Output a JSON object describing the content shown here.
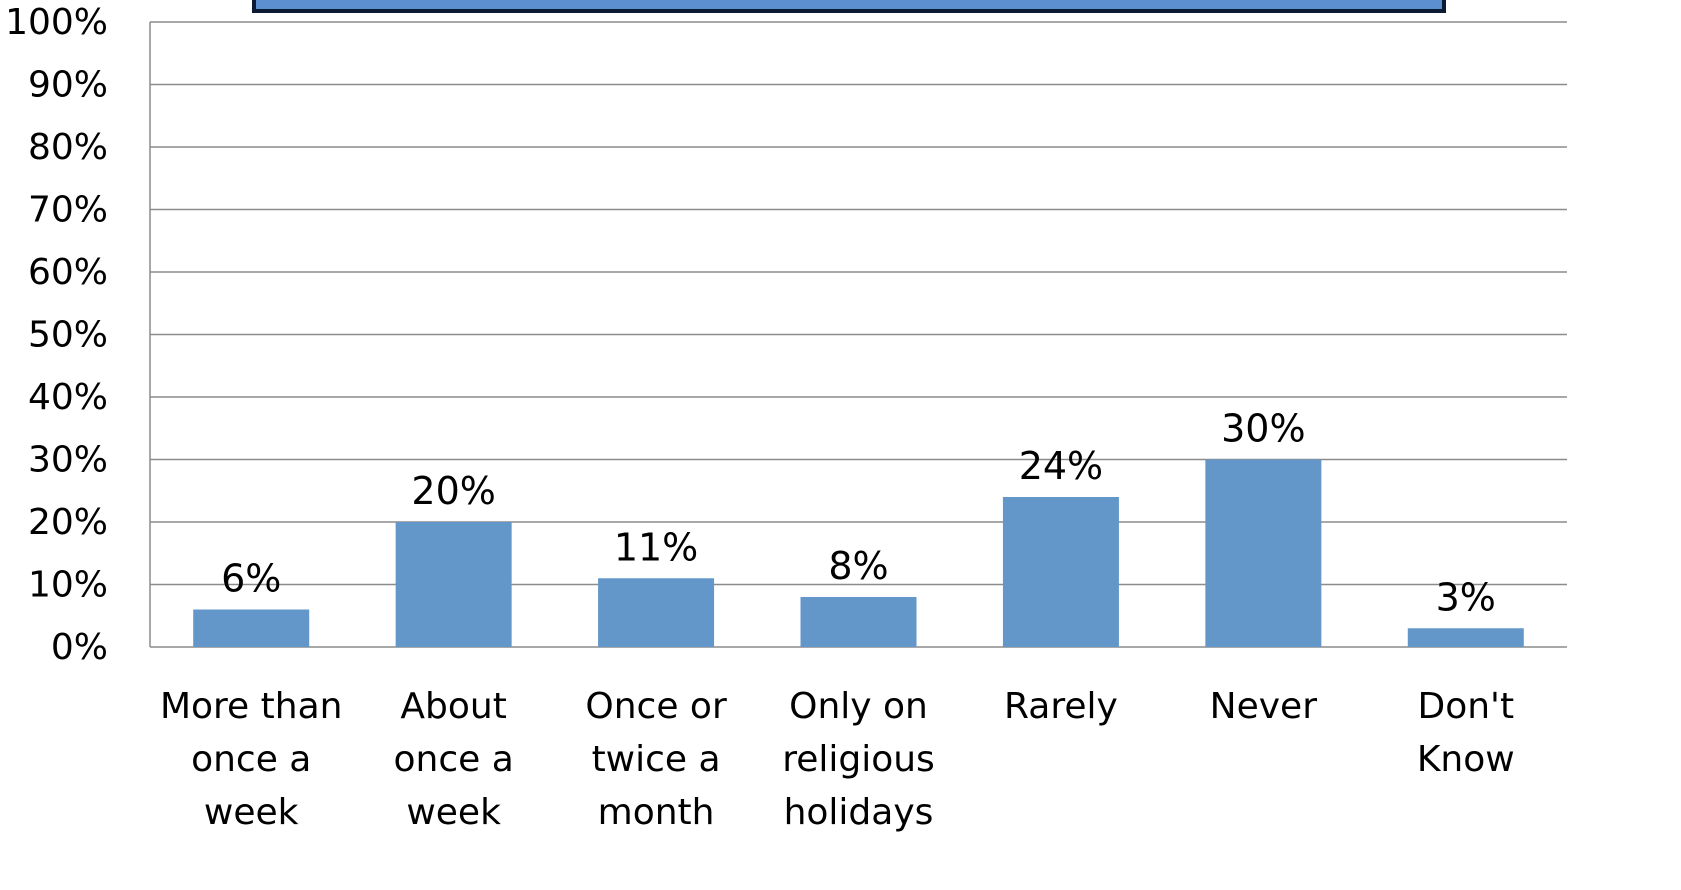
{
  "chart_data": {
    "type": "bar",
    "title": "",
    "xlabel": "",
    "ylabel": "",
    "ylim": [
      0,
      100
    ],
    "ytick_step": 10,
    "ytick_suffix": "%",
    "grid": true,
    "categories": [
      [
        "More than",
        "once a",
        "week"
      ],
      [
        "About",
        "once a",
        "week"
      ],
      [
        "Once or",
        "twice a",
        "month"
      ],
      [
        "Only on",
        "religious",
        "holidays"
      ],
      [
        "Rarely"
      ],
      [
        "Never"
      ],
      [
        "Don't",
        "Know"
      ]
    ],
    "values": [
      6,
      20,
      11,
      8,
      24,
      30,
      3
    ],
    "data_labels": [
      "6%",
      "20%",
      "11%",
      "8%",
      "24%",
      "30%",
      "3%"
    ],
    "colors": {
      "bar": "#6397c9",
      "grid": "#8c8c8c",
      "axis": "#8c8c8c",
      "header_box_fill": "#5b8fd0",
      "header_box_border": "#0d1a33"
    }
  }
}
